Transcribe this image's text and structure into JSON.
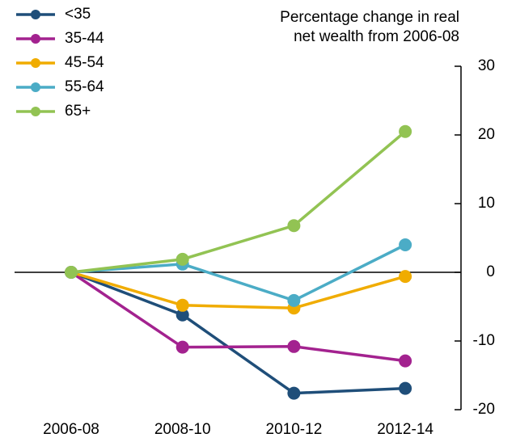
{
  "chart_data": {
    "type": "line",
    "title": "Percentage change in real net wealth from 2006-08",
    "categories": [
      "2006-08",
      "2008-10",
      "2010-12",
      "2012-14"
    ],
    "series": [
      {
        "name": "<35",
        "color": "#1f4e79",
        "values": [
          0,
          -6.2,
          -17.6,
          -16.9
        ]
      },
      {
        "name": "35-44",
        "color": "#a3228f",
        "values": [
          0,
          -10.9,
          -10.8,
          -12.9
        ]
      },
      {
        "name": "45-54",
        "color": "#f0ac00",
        "values": [
          0,
          -4.8,
          -5.2,
          -0.6
        ]
      },
      {
        "name": "55-64",
        "color": "#4bacc6",
        "values": [
          0,
          1.2,
          -4.1,
          4
        ]
      },
      {
        "name": "65+",
        "color": "#92c353",
        "values": [
          0,
          1.9,
          6.8,
          20.5
        ]
      }
    ],
    "ylim": [
      -20,
      30
    ],
    "yticks": [
      -20,
      -10,
      0,
      10,
      20,
      30
    ],
    "legend": "upper left"
  }
}
